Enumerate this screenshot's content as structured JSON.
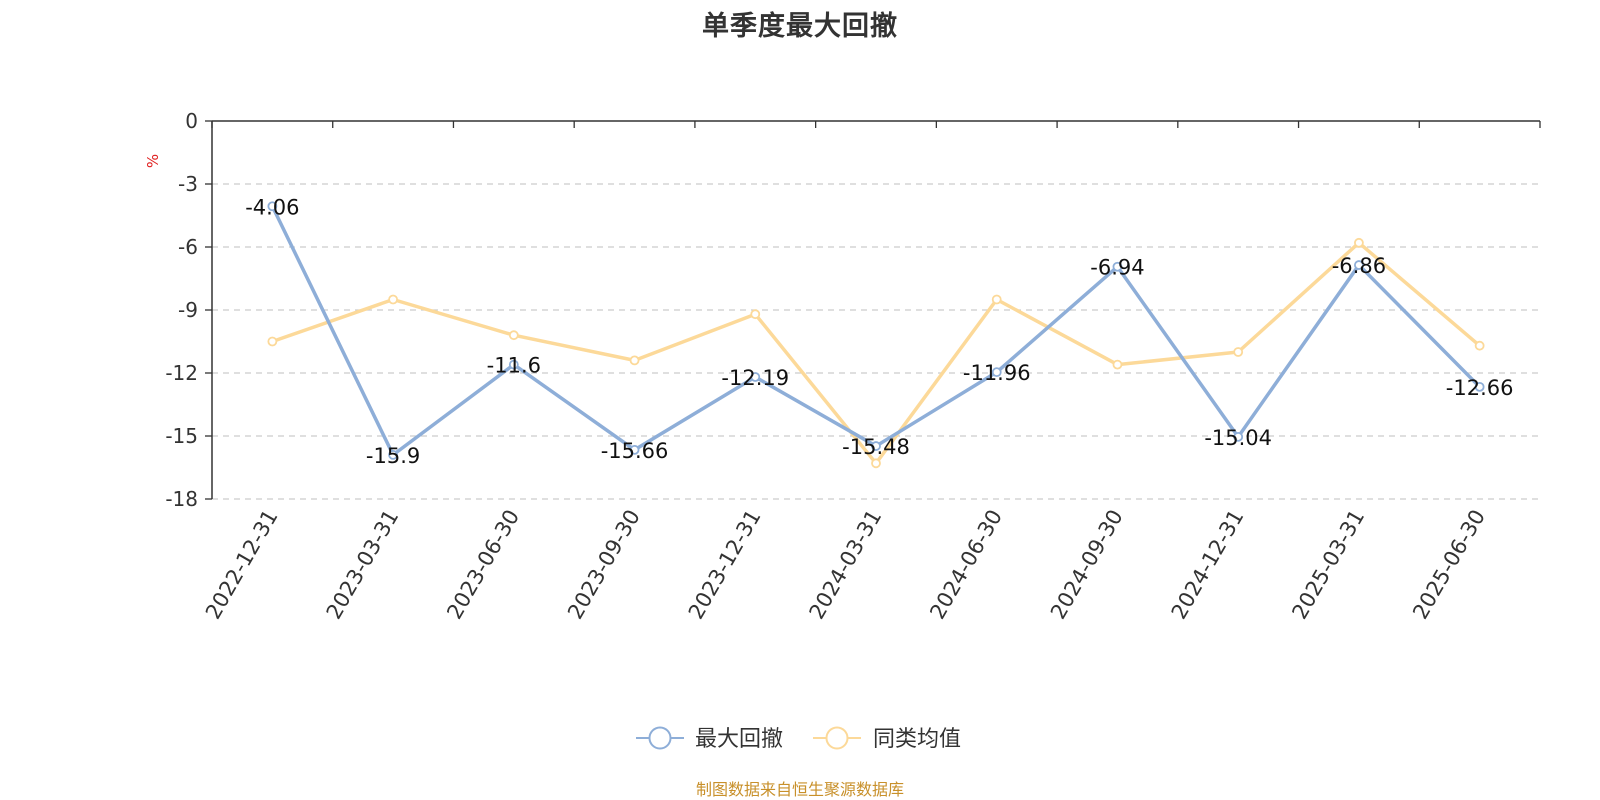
{
  "chart_data": {
    "type": "line",
    "title": "单季度最大回撤",
    "ylabel": "%",
    "categories": [
      "2022-12-31",
      "2023-03-31",
      "2023-06-30",
      "2023-09-30",
      "2023-12-31",
      "2024-03-31",
      "2024-06-30",
      "2024-09-30",
      "2024-12-31",
      "2025-03-31",
      "2025-06-30"
    ],
    "series": [
      {
        "name": "最大回撤",
        "color": "#8eaed8",
        "values": [
          -4.06,
          -15.9,
          -11.6,
          -15.66,
          -12.19,
          -15.48,
          -11.96,
          -6.94,
          -15.04,
          -6.86,
          -12.66
        ],
        "labels": [
          "-4.06",
          "-15.9",
          "-11.6",
          "-15.66",
          "-12.19",
          "-15.48",
          "-11.96",
          "-6.94",
          "-15.04",
          "-6.86",
          "-12.66"
        ]
      },
      {
        "name": "同类均值",
        "color": "#fcd999",
        "values": [
          -10.5,
          -8.5,
          -10.2,
          -11.4,
          -9.2,
          -16.3,
          -8.5,
          -11.6,
          -11.0,
          -5.8,
          -10.7
        ]
      }
    ],
    "ylim": [
      -18,
      0
    ],
    "yticks": [
      "0",
      "-3",
      "-6",
      "-9",
      "-12",
      "-15",
      "-18"
    ],
    "ytick_values": [
      0,
      -3,
      -6,
      -9,
      -12,
      -15,
      -18
    ],
    "grid": true,
    "legend_position": "bottom-center"
  },
  "source_note": "制图数据来自恒生聚源数据库",
  "colors": {
    "axis": "#333333",
    "grid": "#cccccc",
    "unit": "#e02020"
  }
}
